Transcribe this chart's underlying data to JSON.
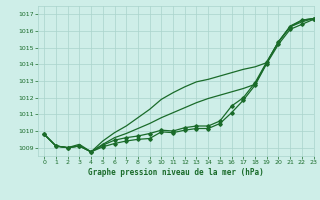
{
  "xlabel": "Graphe pression niveau de la mer (hPa)",
  "bg_color": "#ceeee8",
  "grid_color": "#aad4cc",
  "line_color": "#1a6b2a",
  "xlim": [
    -0.5,
    23
  ],
  "ylim": [
    1008.5,
    1017.5
  ],
  "yticks": [
    1009,
    1010,
    1011,
    1012,
    1013,
    1014,
    1015,
    1016,
    1017
  ],
  "xticks": [
    0,
    1,
    2,
    3,
    4,
    5,
    6,
    7,
    8,
    9,
    10,
    11,
    12,
    13,
    14,
    15,
    16,
    17,
    18,
    19,
    20,
    21,
    22,
    23
  ],
  "series": [
    {
      "y": [
        1009.8,
        1009.1,
        1009.0,
        1009.1,
        1008.75,
        1009.15,
        1009.45,
        1009.6,
        1009.7,
        1009.85,
        1010.05,
        1010.0,
        1010.2,
        1010.3,
        1010.3,
        1010.6,
        1011.5,
        1012.0,
        1012.9,
        1014.15,
        1015.35,
        1016.25,
        1016.65,
        1016.75
      ],
      "marker": true,
      "lw": 0.9
    },
    {
      "y": [
        1009.8,
        1009.1,
        1009.0,
        1009.1,
        1008.75,
        1009.4,
        1009.9,
        1010.3,
        1010.8,
        1011.3,
        1011.9,
        1012.3,
        1012.65,
        1012.95,
        1013.1,
        1013.3,
        1013.5,
        1013.7,
        1013.85,
        1014.1,
        1015.35,
        1016.3,
        1016.65,
        1016.75
      ],
      "marker": false,
      "lw": 0.9
    },
    {
      "y": [
        1009.8,
        1009.1,
        1009.0,
        1009.2,
        1008.75,
        1009.2,
        1009.6,
        1009.85,
        1010.15,
        1010.45,
        1010.8,
        1011.1,
        1011.4,
        1011.7,
        1011.95,
        1012.15,
        1012.35,
        1012.55,
        1012.8,
        1014.1,
        1015.35,
        1016.25,
        1016.55,
        1016.75
      ],
      "marker": false,
      "lw": 0.9
    },
    {
      "y": [
        1009.8,
        1009.1,
        1009.0,
        1009.1,
        1008.75,
        1009.05,
        1009.25,
        1009.4,
        1009.5,
        1009.55,
        1009.95,
        1009.9,
        1010.05,
        1010.15,
        1010.15,
        1010.45,
        1011.1,
        1011.85,
        1012.75,
        1014.05,
        1015.2,
        1016.1,
        1016.4,
        1016.7
      ],
      "marker": true,
      "lw": 0.9
    }
  ]
}
